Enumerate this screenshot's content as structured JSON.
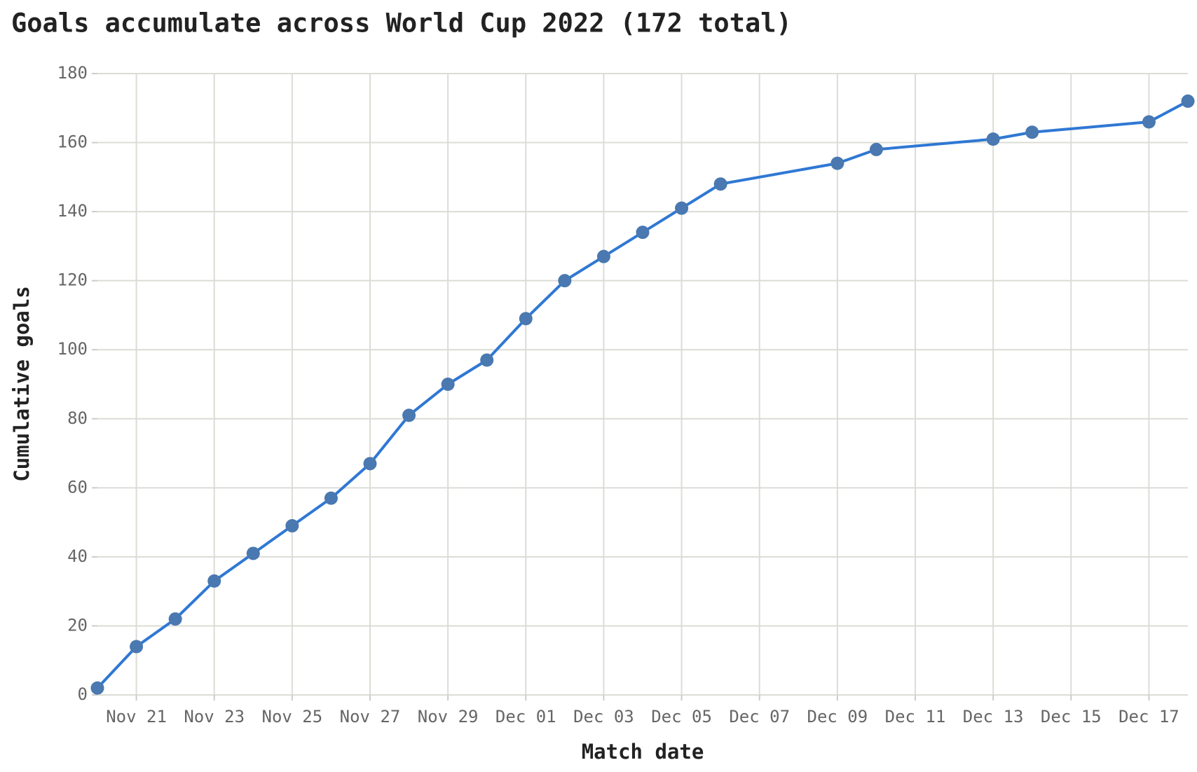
{
  "chart_data": {
    "type": "line",
    "title": "Goals accumulate across World Cup 2022 (172 total)",
    "x_label": "Match date",
    "y_label": "Cumulative goals",
    "x": [
      "Nov 20",
      "Nov 21",
      "Nov 22",
      "Nov 23",
      "Nov 24",
      "Nov 25",
      "Nov 26",
      "Nov 27",
      "Nov 28",
      "Nov 29",
      "Nov 30",
      "Dec 01",
      "Dec 02",
      "Dec 03",
      "Dec 04",
      "Dec 05",
      "Dec 06",
      "Dec 09",
      "Dec 10",
      "Dec 13",
      "Dec 14",
      "Dec 17",
      "Dec 18"
    ],
    "values": [
      2,
      14,
      22,
      33,
      41,
      49,
      57,
      67,
      81,
      90,
      97,
      109,
      120,
      127,
      134,
      141,
      148,
      154,
      158,
      161,
      163,
      166,
      172
    ],
    "color": "#2f78d4",
    "marker_color": "#4a78b0",
    "xlim": [
      "Nov 20",
      "Dec 18"
    ],
    "xticks": [
      "Nov 21",
      "Nov 23",
      "Nov 25",
      "Nov 27",
      "Nov 29",
      "Dec 01",
      "Dec 03",
      "Dec 05",
      "Dec 07",
      "Dec 09",
      "Dec 11",
      "Dec 13",
      "Dec 15",
      "Dec 17"
    ],
    "ylim": [
      0,
      180
    ],
    "yticks": [
      0,
      20,
      40,
      60,
      80,
      100,
      120,
      140,
      160,
      180
    ],
    "grid": true
  }
}
